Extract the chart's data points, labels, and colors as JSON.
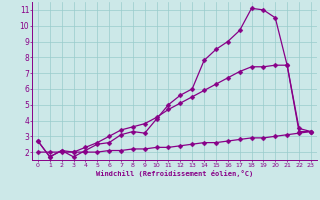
{
  "background_color": "#cce8e8",
  "line_color": "#880088",
  "grid_color": "#99cccc",
  "xlim": [
    -0.5,
    23.5
  ],
  "ylim": [
    1.5,
    11.5
  ],
  "xticks": [
    0,
    1,
    2,
    3,
    4,
    5,
    6,
    7,
    8,
    9,
    10,
    11,
    12,
    13,
    14,
    15,
    16,
    17,
    18,
    19,
    20,
    21,
    22,
    23
  ],
  "yticks": [
    2,
    3,
    4,
    5,
    6,
    7,
    8,
    9,
    10,
    11
  ],
  "xlabel": "Windchill (Refroidissement éolien,°C)",
  "line1_x": [
    0,
    1,
    2,
    3,
    4,
    5,
    6,
    7,
    8,
    9,
    10,
    11,
    12,
    13,
    14,
    15,
    16,
    17,
    18,
    19,
    20,
    21,
    22,
    23
  ],
  "line1_y": [
    2.7,
    1.7,
    2.1,
    1.7,
    2.1,
    2.5,
    2.6,
    3.1,
    3.3,
    3.2,
    4.1,
    5.0,
    5.6,
    6.0,
    7.8,
    8.5,
    9.0,
    9.7,
    11.1,
    11.0,
    10.5,
    7.5,
    3.5,
    3.3
  ],
  "line2_x": [
    0,
    1,
    2,
    3,
    4,
    5,
    6,
    7,
    8,
    9,
    10,
    11,
    12,
    13,
    14,
    15,
    16,
    17,
    18,
    19,
    20,
    21,
    22,
    23
  ],
  "line2_y": [
    2.7,
    1.7,
    2.1,
    2.0,
    2.3,
    2.6,
    3.0,
    3.4,
    3.6,
    3.8,
    4.2,
    4.7,
    5.1,
    5.5,
    5.9,
    6.3,
    6.7,
    7.1,
    7.4,
    7.4,
    7.5,
    7.5,
    3.3,
    3.3
  ],
  "line3_x": [
    0,
    1,
    2,
    3,
    4,
    5,
    6,
    7,
    8,
    9,
    10,
    11,
    12,
    13,
    14,
    15,
    16,
    17,
    18,
    19,
    20,
    21,
    22,
    23
  ],
  "line3_y": [
    2.0,
    2.0,
    2.0,
    2.0,
    2.0,
    2.0,
    2.1,
    2.1,
    2.2,
    2.2,
    2.3,
    2.3,
    2.4,
    2.5,
    2.6,
    2.6,
    2.7,
    2.8,
    2.9,
    2.9,
    3.0,
    3.1,
    3.2,
    3.3
  ],
  "markersize": 2.5,
  "linewidth": 0.9,
  "xlabel_fontsize": 5.0,
  "tick_fontsize_x": 4.5,
  "tick_fontsize_y": 5.5
}
